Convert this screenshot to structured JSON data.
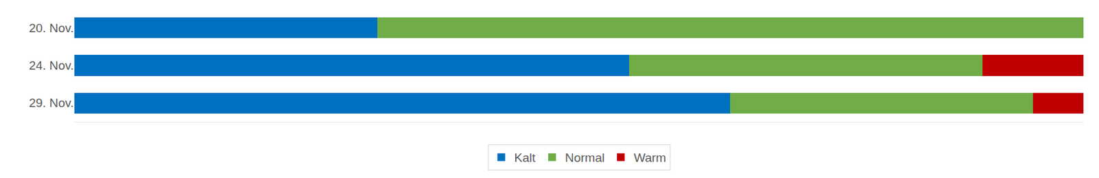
{
  "chart_data": {
    "type": "bar",
    "orientation": "horizontal",
    "stacked": true,
    "categories": [
      "20. Nov.",
      "24. Nov.",
      "29. Nov."
    ],
    "series": [
      {
        "name": "Kalt",
        "color": "#0070c0",
        "values": [
          30,
          55,
          65
        ]
      },
      {
        "name": "Normal",
        "color": "#70ad47",
        "values": [
          70,
          35,
          30
        ]
      },
      {
        "name": "Warm",
        "color": "#c00000",
        "values": [
          0,
          10,
          5
        ]
      }
    ],
    "xlim": [
      0,
      100
    ],
    "grid": false,
    "legend": "bottom",
    "tick_labels": "y"
  }
}
